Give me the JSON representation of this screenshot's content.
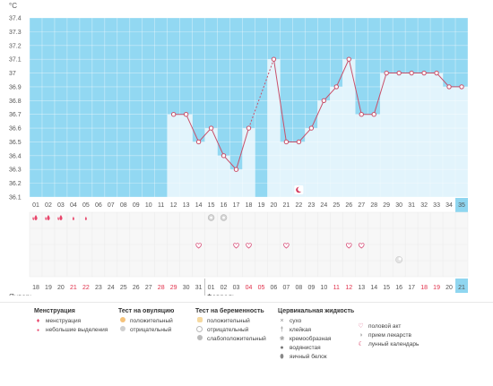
{
  "unit": "°C",
  "chart_data": {
    "type": "line",
    "ylim": [
      36.1,
      37.4
    ],
    "y_ticks": [
      36.1,
      36.2,
      36.3,
      36.4,
      36.5,
      36.6,
      36.7,
      36.8,
      36.9,
      37,
      37.1,
      37.2,
      37.3,
      37.4
    ],
    "cycle_days": [
      "01",
      "02",
      "03",
      "04",
      "05",
      "06",
      "07",
      "08",
      "09",
      "10",
      "11",
      "12",
      "13",
      "14",
      "15",
      "16",
      "17",
      "18",
      "19",
      "20",
      "21",
      "22",
      "23",
      "24",
      "25",
      "26",
      "27",
      "28",
      "29",
      "30",
      "31",
      "32",
      "33",
      "34",
      "35"
    ],
    "dates": [
      "18",
      "19",
      "20",
      "21",
      "22",
      "23",
      "24",
      "25",
      "26",
      "27",
      "28",
      "29",
      "30",
      "31",
      "01",
      "02",
      "03",
      "04",
      "05",
      "06",
      "07",
      "08",
      "09",
      "10",
      "11",
      "12",
      "13",
      "14",
      "15",
      "16",
      "17",
      "18",
      "19",
      "20",
      "21"
    ],
    "weekend_indices": [
      3,
      4,
      10,
      11,
      17,
      18,
      24,
      25,
      31,
      32
    ],
    "highlight_index": 34,
    "highlight_color": "#8fd6f0",
    "band_color": "#92d8f2",
    "fill_color": "#e2f4fc",
    "line_color": "#c8506a",
    "weekend_color": "#e0304a",
    "series": [
      {
        "values": [
          null,
          null,
          null,
          null,
          null,
          null,
          null,
          null,
          null,
          null,
          null,
          36.7,
          36.7,
          36.5,
          36.6,
          36.4,
          36.3,
          36.6,
          null,
          37.1,
          36.5,
          36.5,
          36.6,
          36.8,
          36.9,
          37.1,
          36.7,
          36.7,
          37.0,
          37.0,
          37.0,
          37.0,
          37.0,
          36.9,
          36.9
        ]
      }
    ],
    "dashed_segment": [
      17,
      19
    ],
    "menstruation": [
      0,
      1,
      2
    ],
    "spotting": [
      3,
      4
    ],
    "ovulation_negative": [
      14,
      15
    ],
    "sex": [
      13,
      16,
      17,
      20,
      25,
      26
    ],
    "lunar": [
      21
    ],
    "mucus": [
      29
    ]
  },
  "months": {
    "first": "Январь",
    "second": "Февраль"
  },
  "legend": {
    "menses": {
      "title": "Менструация",
      "items": [
        "менструация",
        "небольшие выделения"
      ]
    },
    "ovulation": {
      "title": "Тест на овуляцию",
      "items": [
        "положительный",
        "отрицательный"
      ]
    },
    "pregnancy": {
      "title": "Тест на беременность",
      "items": [
        "положительный",
        "отрицательный",
        "слабоположительный"
      ]
    },
    "mucus": {
      "title": "Цервикальная жидкость",
      "items": [
        "сухо",
        "клейкая",
        "кремообразная",
        "водянистая",
        "яичный белок"
      ]
    },
    "other": {
      "items": [
        "половой акт",
        "прием лекарств",
        "лунный календарь"
      ]
    }
  }
}
